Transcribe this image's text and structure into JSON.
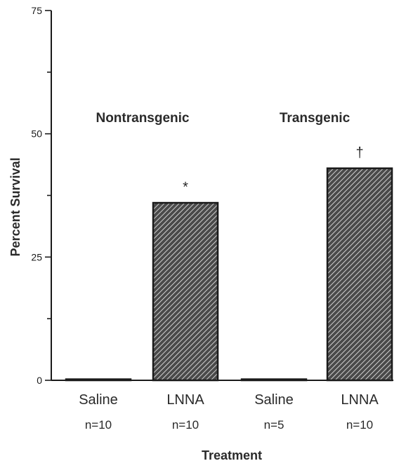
{
  "chart_data": {
    "type": "bar",
    "xlabel": "Treatment",
    "ylabel": "Percent Survival",
    "ylim": [
      0,
      75
    ],
    "yticks": [
      0,
      25,
      50,
      75
    ],
    "grid": false,
    "categories": [
      "Saline",
      "LNNA",
      "Saline",
      "LNNA"
    ],
    "sample_sizes": [
      "n=10",
      "n=10",
      "n=5",
      "n=10"
    ],
    "values": [
      0,
      36,
      0,
      43
    ],
    "annotations": [
      "",
      "*",
      "",
      "†"
    ],
    "groups": [
      {
        "label": "Nontransgenic",
        "categories": [
          0,
          1
        ]
      },
      {
        "label": "Transgenic",
        "categories": [
          2,
          3
        ]
      }
    ],
    "colors": {
      "axis": "#1a1a1a",
      "bar_fill": "#4a4a4a",
      "hatch": "#f2f2f2"
    }
  }
}
